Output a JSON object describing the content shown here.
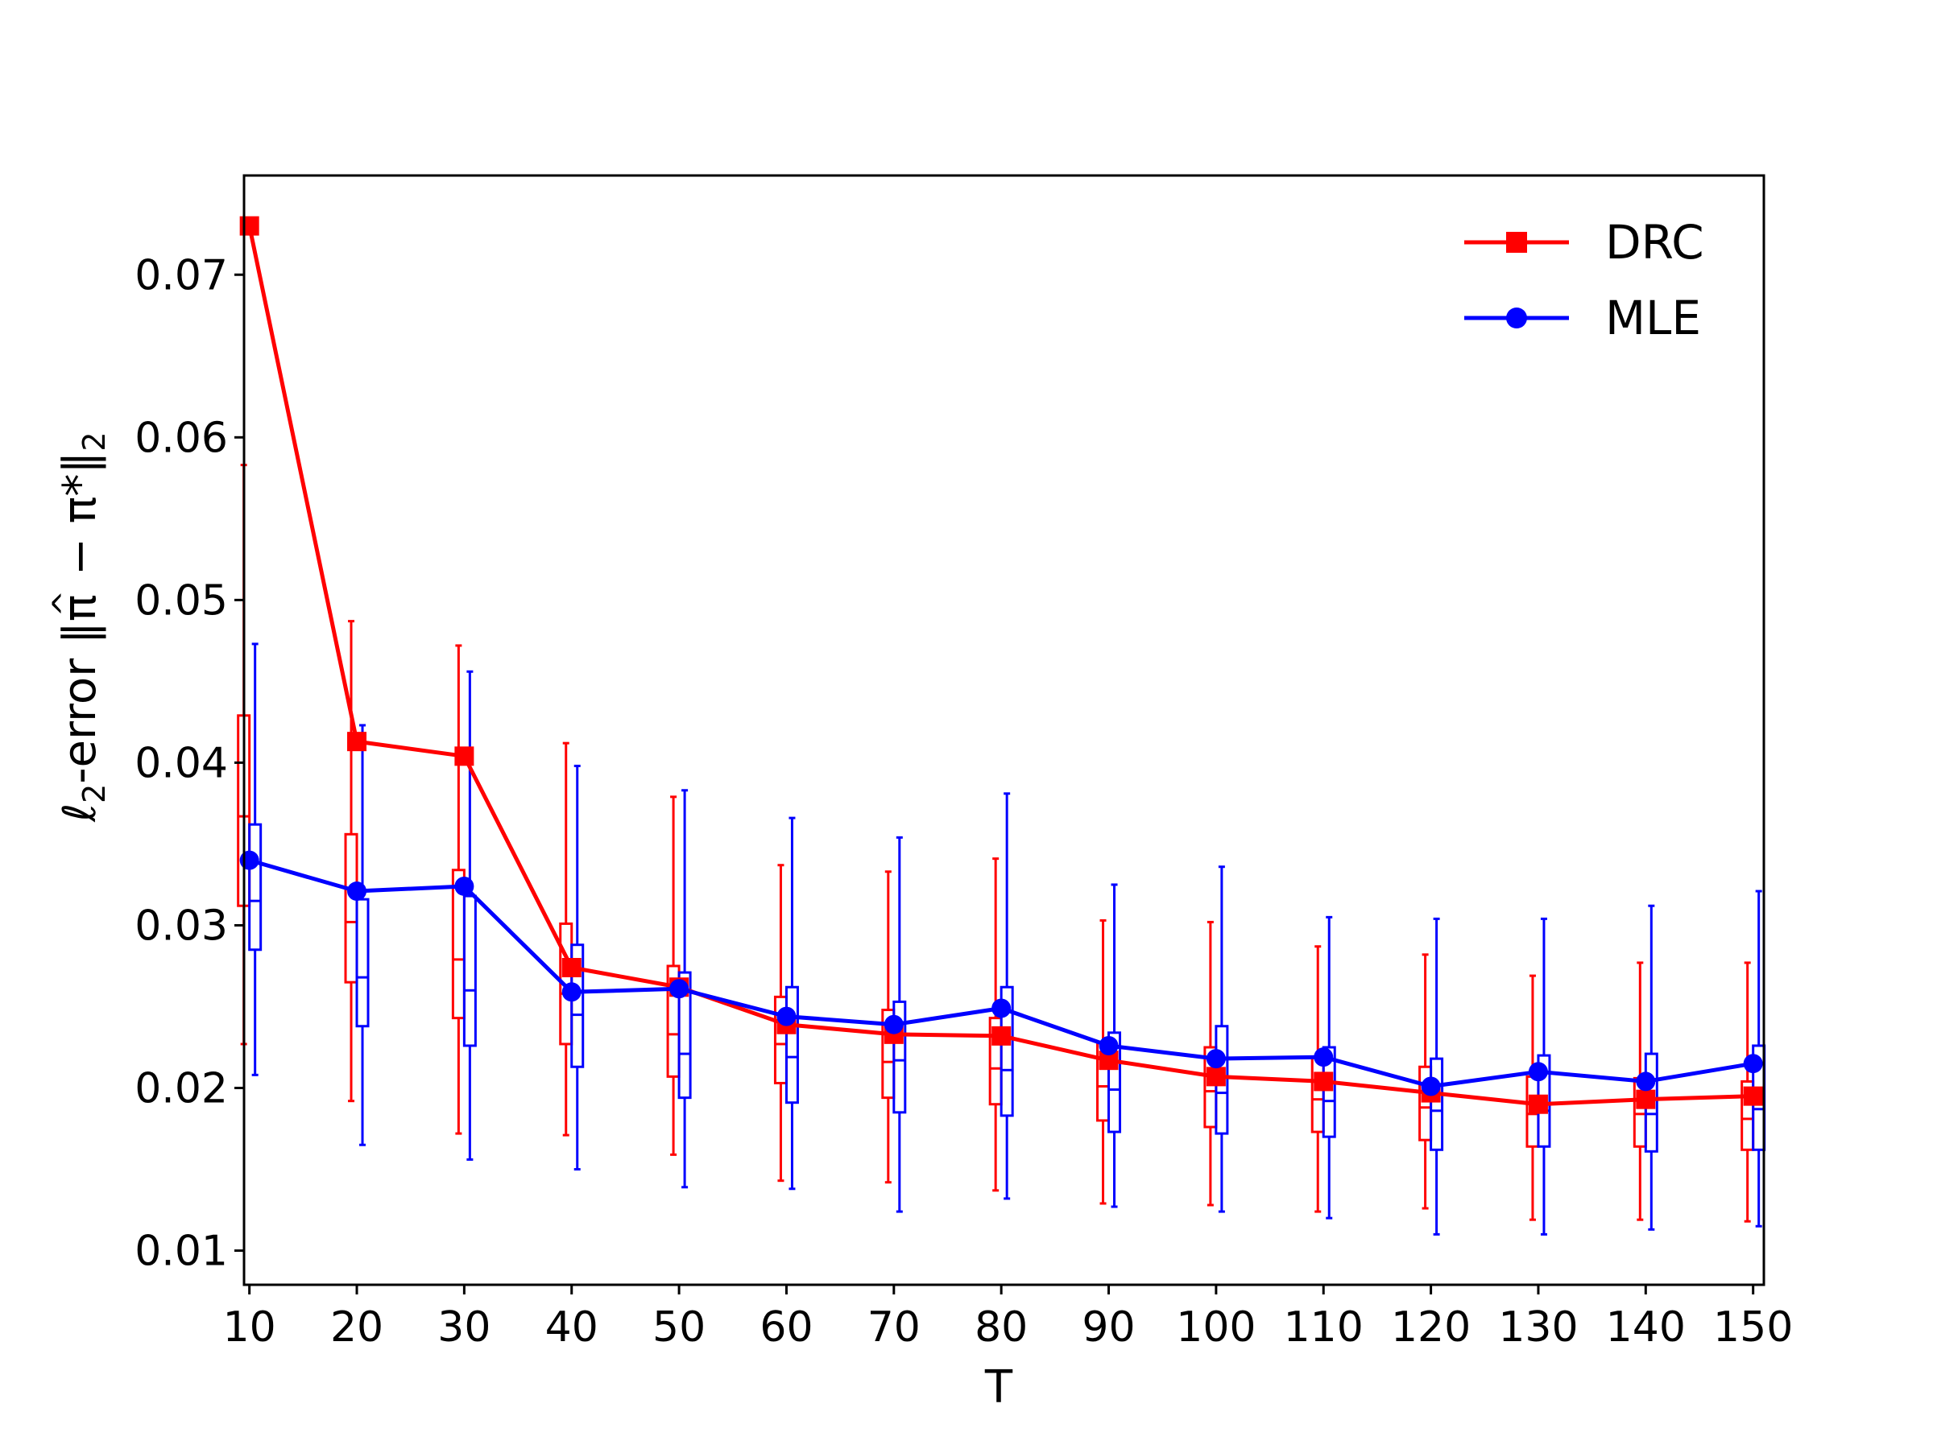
{
  "chart_data": {
    "type": "line",
    "xlabel": "T",
    "ylabel": {
      "prefix": "ℓ",
      "sub": "2",
      "middle": "-error  ‖",
      "pi_hat": "π",
      "hat": "^",
      "rest": " − π*‖",
      "sub2": "2"
    },
    "xlim": [
      9.5,
      151
    ],
    "ylim": [
      0.0079,
      0.0761
    ],
    "xticks": [
      10,
      20,
      30,
      40,
      50,
      60,
      70,
      80,
      90,
      100,
      110,
      120,
      130,
      140,
      150
    ],
    "yticks": [
      0.01,
      0.02,
      0.03,
      0.04,
      0.05,
      0.06,
      0.07
    ],
    "ytick_labels": [
      "0.01",
      "0.02",
      "0.03",
      "0.04",
      "0.05",
      "0.06",
      "0.07"
    ],
    "grid": false,
    "legend_position": "top-right",
    "series": [
      {
        "name": "DRC",
        "color": "#ff0000",
        "marker": "square",
        "x": [
          10,
          20,
          30,
          40,
          50,
          60,
          70,
          80,
          90,
          100,
          110,
          120,
          130,
          140,
          150
        ],
        "values": [
          0.073,
          0.0413,
          0.0404,
          0.0274,
          0.0262,
          0.0239,
          0.0233,
          0.0232,
          0.0217,
          0.0207,
          0.0204,
          0.0197,
          0.019,
          0.0193,
          0.0195
        ],
        "box": [
          {
            "whislo": 0.0227,
            "q1": 0.0312,
            "med": 0.0367,
            "q3": 0.0429,
            "whishi": 0.0583
          },
          {
            "whislo": 0.0192,
            "q1": 0.0265,
            "med": 0.0302,
            "q3": 0.0356,
            "whishi": 0.0487
          },
          {
            "whislo": 0.0172,
            "q1": 0.0243,
            "med": 0.0279,
            "q3": 0.0334,
            "whishi": 0.0472
          },
          {
            "whislo": 0.0171,
            "q1": 0.0227,
            "med": 0.0258,
            "q3": 0.0301,
            "whishi": 0.0412
          },
          {
            "whislo": 0.0159,
            "q1": 0.0207,
            "med": 0.0233,
            "q3": 0.0275,
            "whishi": 0.0379
          },
          {
            "whislo": 0.0143,
            "q1": 0.0203,
            "med": 0.0227,
            "q3": 0.0256,
            "whishi": 0.0337
          },
          {
            "whislo": 0.0142,
            "q1": 0.0194,
            "med": 0.0216,
            "q3": 0.0248,
            "whishi": 0.0333
          },
          {
            "whislo": 0.0137,
            "q1": 0.019,
            "med": 0.0212,
            "q3": 0.0243,
            "whishi": 0.0341
          },
          {
            "whislo": 0.0129,
            "q1": 0.018,
            "med": 0.0201,
            "q3": 0.0228,
            "whishi": 0.0303
          },
          {
            "whislo": 0.0128,
            "q1": 0.0176,
            "med": 0.0198,
            "q3": 0.0225,
            "whishi": 0.0302
          },
          {
            "whislo": 0.0124,
            "q1": 0.0173,
            "med": 0.0193,
            "q3": 0.0219,
            "whishi": 0.0287
          },
          {
            "whislo": 0.0126,
            "q1": 0.0168,
            "med": 0.0188,
            "q3": 0.0213,
            "whishi": 0.0282
          },
          {
            "whislo": 0.0119,
            "q1": 0.0164,
            "med": 0.0184,
            "q3": 0.0207,
            "whishi": 0.0269
          },
          {
            "whislo": 0.0119,
            "q1": 0.0164,
            "med": 0.0184,
            "q3": 0.0206,
            "whishi": 0.0277
          },
          {
            "whislo": 0.0118,
            "q1": 0.0162,
            "med": 0.0181,
            "q3": 0.0204,
            "whishi": 0.0277
          }
        ]
      },
      {
        "name": "MLE",
        "color": "#0000ff",
        "marker": "circle",
        "x": [
          10,
          20,
          30,
          40,
          50,
          60,
          70,
          80,
          90,
          100,
          110,
          120,
          130,
          140,
          150
        ],
        "values": [
          0.034,
          0.0321,
          0.0324,
          0.0259,
          0.0261,
          0.0244,
          0.0239,
          0.0249,
          0.0226,
          0.0218,
          0.0219,
          0.0201,
          0.021,
          0.0204,
          0.0215
        ],
        "box": [
          {
            "whislo": 0.0208,
            "q1": 0.0285,
            "med": 0.0315,
            "q3": 0.0362,
            "whishi": 0.0473
          },
          {
            "whislo": 0.0165,
            "q1": 0.0238,
            "med": 0.0268,
            "q3": 0.0316,
            "whishi": 0.0423
          },
          {
            "whislo": 0.0156,
            "q1": 0.0226,
            "med": 0.026,
            "q3": 0.0318,
            "whishi": 0.0456
          },
          {
            "whislo": 0.015,
            "q1": 0.0213,
            "med": 0.0245,
            "q3": 0.0288,
            "whishi": 0.0398
          },
          {
            "whislo": 0.0139,
            "q1": 0.0194,
            "med": 0.0221,
            "q3": 0.0271,
            "whishi": 0.0383
          },
          {
            "whislo": 0.0138,
            "q1": 0.0191,
            "med": 0.0219,
            "q3": 0.0262,
            "whishi": 0.0366
          },
          {
            "whislo": 0.0124,
            "q1": 0.0185,
            "med": 0.0217,
            "q3": 0.0253,
            "whishi": 0.0354
          },
          {
            "whislo": 0.0132,
            "q1": 0.0183,
            "med": 0.0211,
            "q3": 0.0262,
            "whishi": 0.0381
          },
          {
            "whislo": 0.0127,
            "q1": 0.0173,
            "med": 0.0199,
            "q3": 0.0234,
            "whishi": 0.0325
          },
          {
            "whislo": 0.0124,
            "q1": 0.0172,
            "med": 0.0197,
            "q3": 0.0238,
            "whishi": 0.0336
          },
          {
            "whislo": 0.012,
            "q1": 0.017,
            "med": 0.0192,
            "q3": 0.0225,
            "whishi": 0.0305
          },
          {
            "whislo": 0.011,
            "q1": 0.0162,
            "med": 0.0186,
            "q3": 0.0218,
            "whishi": 0.0304
          },
          {
            "whislo": 0.011,
            "q1": 0.0164,
            "med": 0.0186,
            "q3": 0.022,
            "whishi": 0.0304
          },
          {
            "whislo": 0.0113,
            "q1": 0.0161,
            "med": 0.0184,
            "q3": 0.0221,
            "whishi": 0.0312
          },
          {
            "whislo": 0.0115,
            "q1": 0.0162,
            "med": 0.0187,
            "q3": 0.0226,
            "whishi": 0.0321
          }
        ]
      }
    ]
  }
}
